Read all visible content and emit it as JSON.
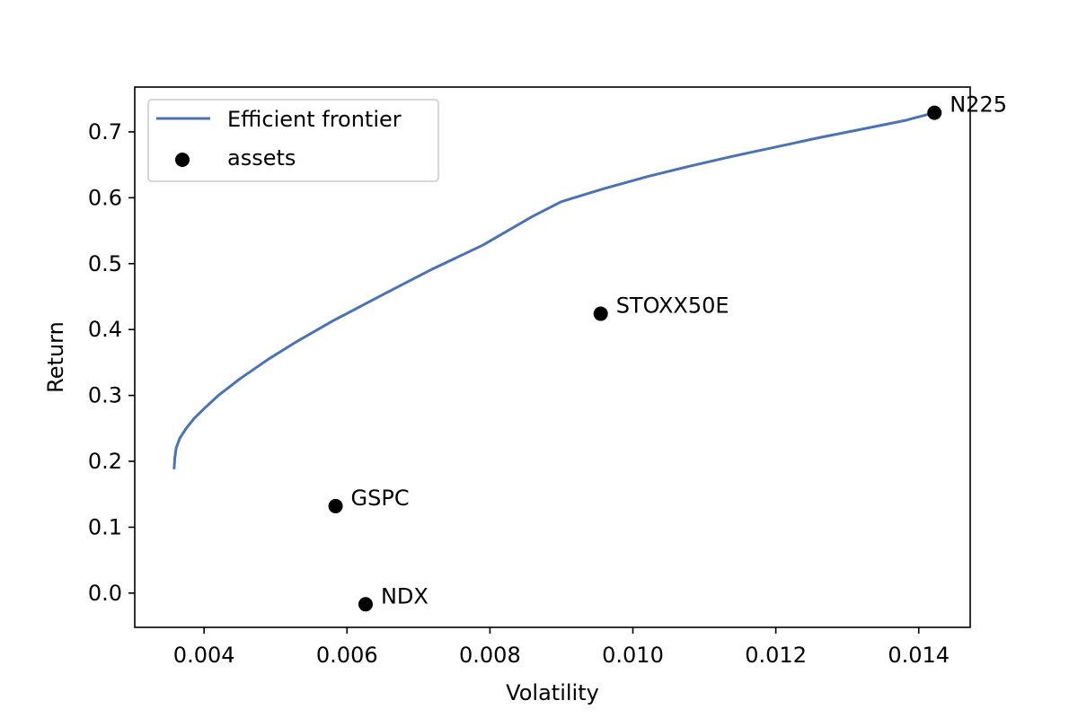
{
  "chart_data": {
    "type": "scatter",
    "xlabel": "Volatility",
    "ylabel": "Return",
    "xlim": [
      0.00303,
      0.01472
    ],
    "ylim": [
      -0.052,
      0.768
    ],
    "x_ticks": [
      0.004,
      0.006,
      0.008,
      0.01,
      0.012,
      0.014
    ],
    "x_tick_labels": [
      "0.004",
      "0.006",
      "0.008",
      "0.010",
      "0.012",
      "0.014"
    ],
    "y_ticks": [
      0.0,
      0.1,
      0.2,
      0.3,
      0.4,
      0.5,
      0.6,
      0.7
    ],
    "y_tick_labels": [
      "0.0",
      "0.1",
      "0.2",
      "0.3",
      "0.4",
      "0.5",
      "0.6",
      "0.7"
    ],
    "grid": false,
    "legend_position": "top-left",
    "colors": {
      "frontier": "#4c72b0",
      "assets": "#000000"
    },
    "series": [
      {
        "name": "Efficient frontier",
        "kind": "line",
        "x": [
          0.00358,
          0.00359,
          0.00361,
          0.00366,
          0.00375,
          0.00386,
          0.004,
          0.0042,
          0.0045,
          0.0049,
          0.0053,
          0.0058,
          0.0065,
          0.0072,
          0.0079,
          0.0086,
          0.009,
          0.0096,
          0.0102,
          0.0108,
          0.0114,
          0.012,
          0.0126,
          0.0132,
          0.0138,
          0.01422
        ],
        "y": [
          0.188,
          0.205,
          0.22,
          0.235,
          0.25,
          0.265,
          0.28,
          0.3,
          0.325,
          0.355,
          0.382,
          0.413,
          0.453,
          0.492,
          0.528,
          0.572,
          0.594,
          0.614,
          0.632,
          0.648,
          0.663,
          0.677,
          0.691,
          0.704,
          0.717,
          0.729
        ]
      },
      {
        "name": "assets",
        "kind": "scatter",
        "points": [
          {
            "label": "N225",
            "x": 0.01422,
            "y": 0.729
          },
          {
            "label": "STOXX50E",
            "x": 0.00955,
            "y": 0.424
          },
          {
            "label": "GSPC",
            "x": 0.00584,
            "y": 0.132
          },
          {
            "label": "NDX",
            "x": 0.00626,
            "y": -0.017
          }
        ]
      }
    ]
  }
}
